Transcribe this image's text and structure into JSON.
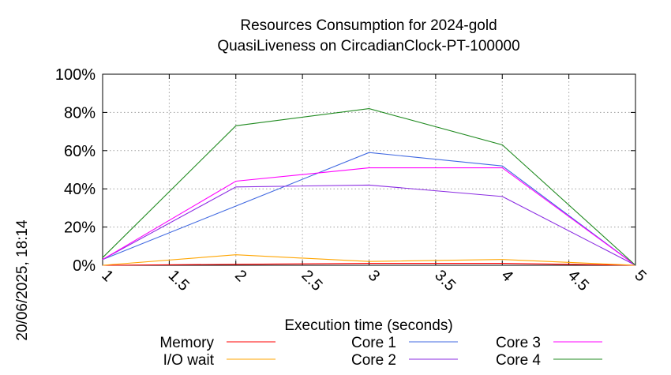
{
  "side_label": "20/06/2025, 18:14",
  "chart_data": {
    "type": "line",
    "title": "Resources Consumption for 2024-gold",
    "subtitle": "QuasiLiveness on CircadianClock-PT-100000",
    "xlabel": "Execution time (seconds)",
    "ylabel": "",
    "xlim": [
      1,
      5
    ],
    "ylim": [
      0,
      100
    ],
    "x_ticks": [
      "1",
      "1.5",
      "2",
      "2.5",
      "3",
      "3.5",
      "4",
      "4.5",
      "5"
    ],
    "y_ticks": [
      "0%",
      "20%",
      "40%",
      "60%",
      "80%",
      "100%"
    ],
    "grid": true,
    "legend_position": "bottom",
    "x": [
      1,
      2,
      3,
      4,
      5
    ],
    "series": [
      {
        "name": "Memory",
        "color": "#ff0000",
        "values": [
          0,
          0.5,
          1,
          1,
          0
        ]
      },
      {
        "name": "I/O wait",
        "color": "#ffa500",
        "values": [
          0,
          5.5,
          2,
          3,
          0
        ]
      },
      {
        "name": "Core 1",
        "color": "#4169e1",
        "values": [
          3,
          31,
          59,
          52,
          0
        ]
      },
      {
        "name": "Core 2",
        "color": "#8a2be2",
        "values": [
          3,
          41,
          42,
          36,
          0
        ]
      },
      {
        "name": "Core 3",
        "color": "#ff00ff",
        "values": [
          3,
          44,
          51,
          51,
          0
        ]
      },
      {
        "name": "Core 4",
        "color": "#228b22",
        "values": [
          4,
          73,
          82,
          63,
          0
        ]
      }
    ]
  }
}
